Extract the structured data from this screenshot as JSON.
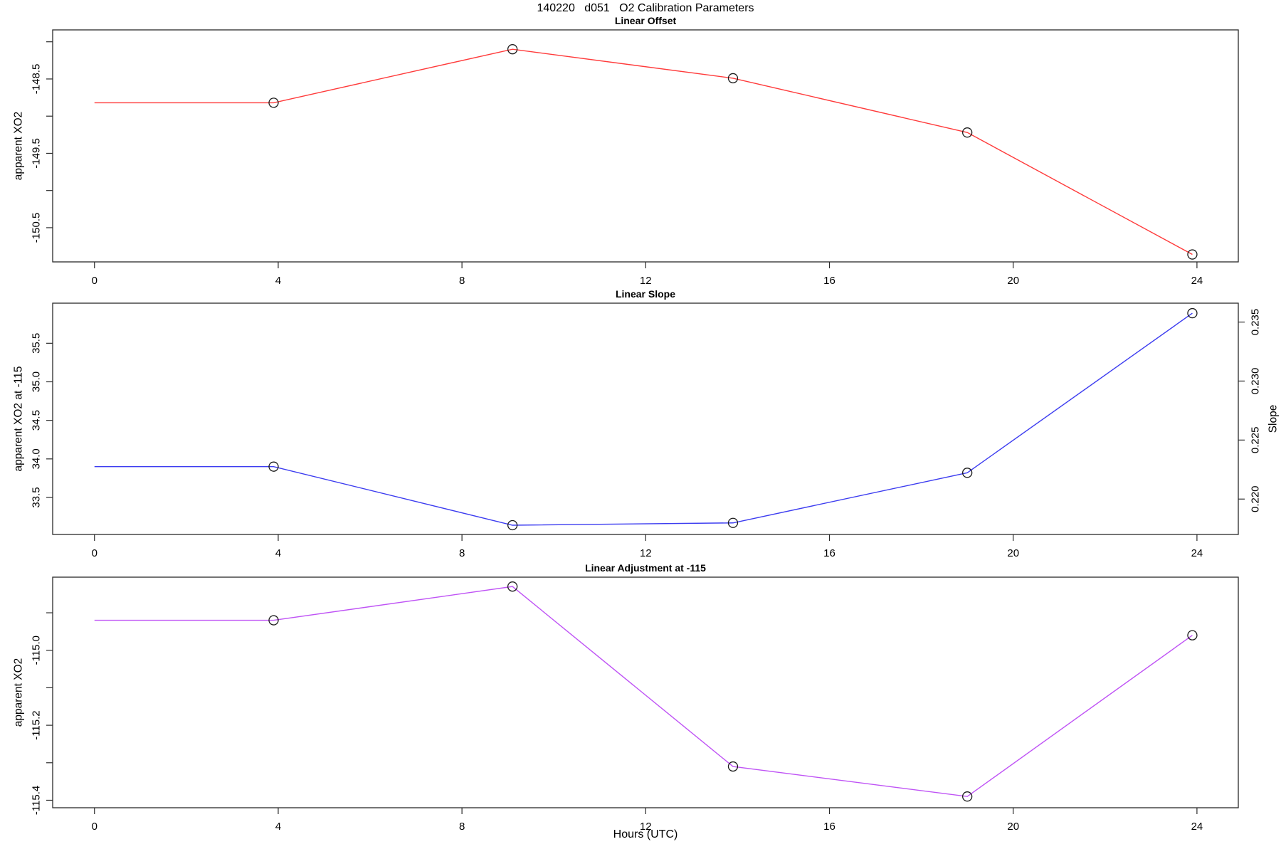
{
  "page": {
    "title": "140220   d051   O2 Calibration Parameters",
    "xlabel": "Hours (UTC)",
    "background": "#ffffff",
    "axis_color": "#2a2a2a",
    "marker_color": "#1a1a1a"
  },
  "chart_data": [
    {
      "type": "line",
      "title": "Linear Offset",
      "ylabel": "apparent XO2",
      "line_color": "#ff3b3b",
      "x": [
        0,
        3.9,
        9.1,
        13.9,
        19,
        23.9
      ],
      "y": [
        -148.82,
        -148.82,
        -148.1,
        -148.49,
        -149.22,
        -150.86
      ],
      "marker": "open-circle",
      "marker_start_index": 1,
      "xlim": [
        -0.91,
        24.9
      ],
      "ylim": [
        -150.96,
        -147.84
      ],
      "x_ticks": {
        "values": [
          0,
          4,
          8,
          12,
          16,
          20,
          24
        ],
        "labels": [
          "0",
          "4",
          "8",
          "12",
          "16",
          "20",
          "24"
        ]
      },
      "y_ticks": {
        "values": [
          -150.5,
          -150.0,
          -149.5,
          -149.0,
          -148.5,
          -148.0
        ],
        "labels": [
          "-150.5",
          "",
          "-149.5",
          "",
          "-148.5",
          ""
        ]
      },
      "grid": false
    },
    {
      "type": "line",
      "title": "Linear Slope",
      "ylabel": "apparent XO2 at -115",
      "ylabel_right": "Slope",
      "line_color": "#3c3cf0",
      "x": [
        0,
        3.9,
        9.1,
        13.9,
        19,
        23.9
      ],
      "y": [
        33.9,
        33.9,
        33.14,
        33.17,
        33.82,
        35.89
      ],
      "marker": "open-circle",
      "marker_start_index": 1,
      "xlim": [
        -0.91,
        24.9
      ],
      "ylim": [
        33.02,
        36.02
      ],
      "ylim_right": [
        0.217,
        0.2366
      ],
      "x_ticks": {
        "values": [
          0,
          4,
          8,
          12,
          16,
          20,
          24
        ],
        "labels": [
          "0",
          "4",
          "8",
          "12",
          "16",
          "20",
          "24"
        ]
      },
      "y_ticks": {
        "values": [
          33.5,
          34.0,
          34.5,
          35.0,
          35.5
        ],
        "labels": [
          "33.5",
          "34.0",
          "34.5",
          "35.0",
          "35.5"
        ]
      },
      "y_ticks_right": {
        "values": [
          0.22,
          0.225,
          0.23,
          0.235
        ],
        "labels": [
          "0.220",
          "0.225",
          "0.230",
          "0.235"
        ]
      },
      "grid": false
    },
    {
      "type": "line",
      "title": "Linear Adjustment at -115",
      "ylabel": "apparent XO2",
      "line_color": "#bf53f5",
      "x": [
        0,
        3.9,
        9.1,
        13.9,
        19,
        23.9
      ],
      "y": [
        -114.92,
        -114.92,
        -114.83,
        -115.31,
        -115.39,
        -114.96
      ],
      "marker": "open-circle",
      "marker_start_index": 1,
      "xlim": [
        -0.91,
        24.9
      ],
      "ylim": [
        -115.42,
        -114.805
      ],
      "x_ticks": {
        "values": [
          0,
          4,
          8,
          12,
          16,
          20,
          24
        ],
        "labels": [
          "0",
          "4",
          "8",
          "12",
          "16",
          "20",
          "24"
        ]
      },
      "y_ticks": {
        "values": [
          -115.4,
          -115.3,
          -115.2,
          -115.1,
          -115.0,
          -114.9
        ],
        "labels": [
          "-115.4",
          "",
          "-115.2",
          "",
          "-115.0",
          ""
        ]
      },
      "grid": false
    }
  ]
}
